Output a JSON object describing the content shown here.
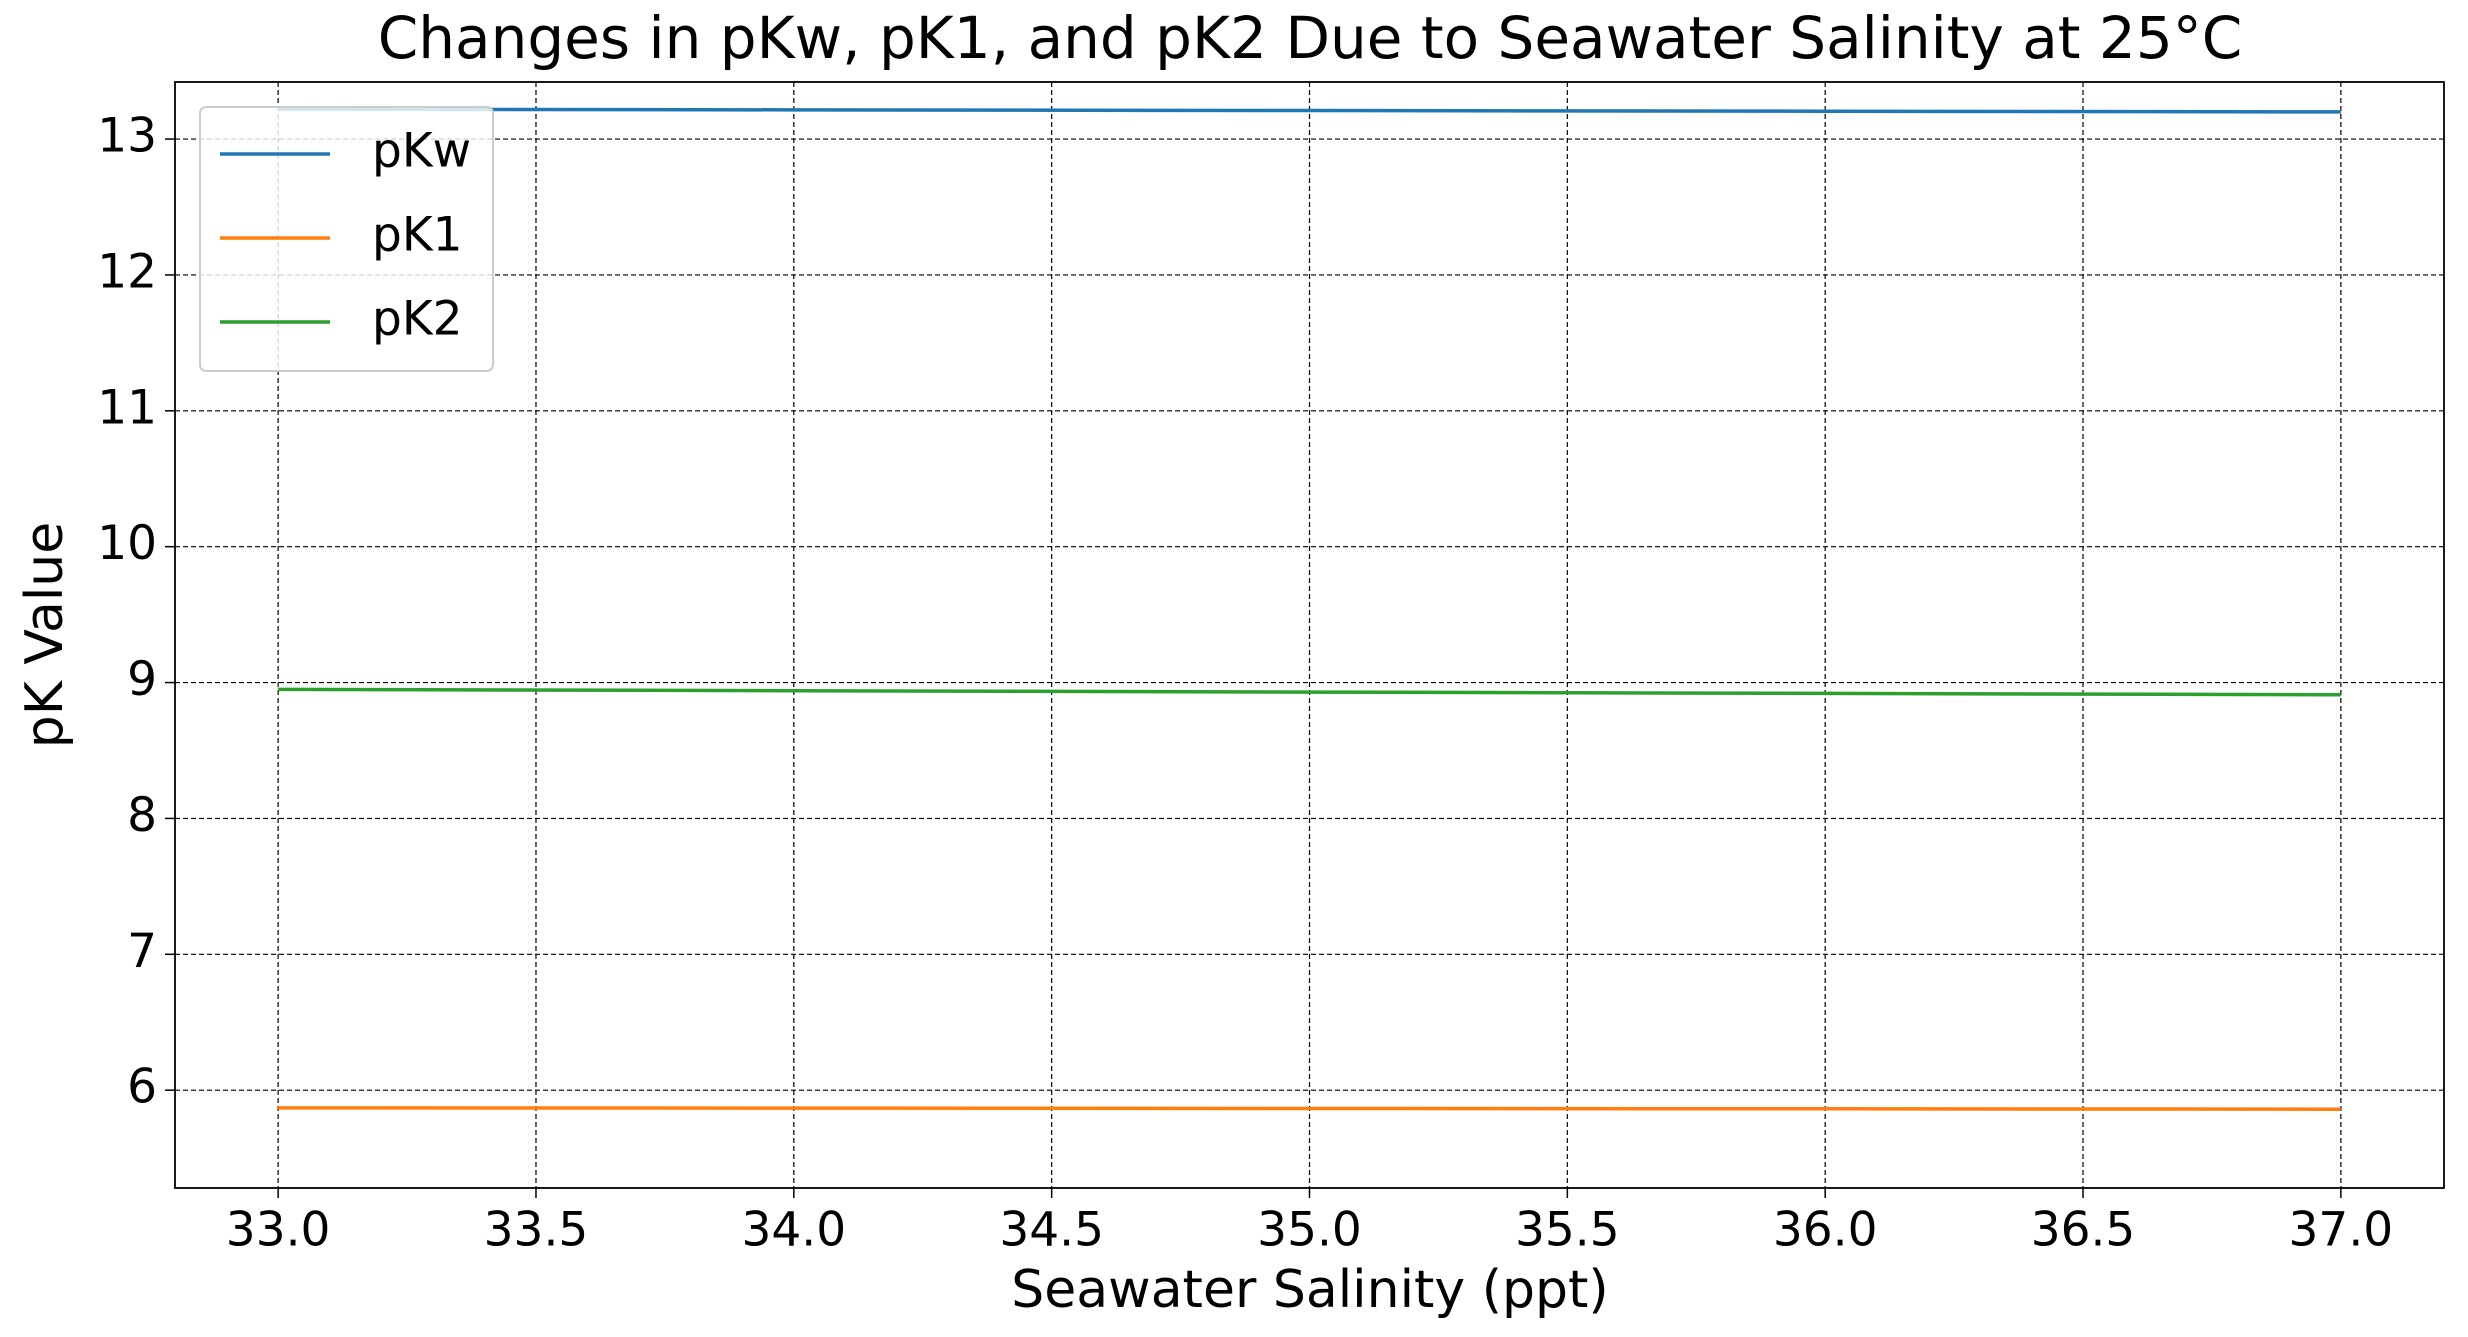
{
  "chart_data": {
    "type": "line",
    "title": "Changes in pKw, pK1, and pK2 Due to Seawater Salinity at 25°C",
    "x_label": "Seawater Salinity (ppt)",
    "y_label": "pK Value",
    "x": [
      33.0,
      34.0,
      35.0,
      36.0,
      37.0
    ],
    "series": [
      {
        "name": "pKw",
        "color": "#1f77b4",
        "values": [
          13.22,
          13.215,
          13.21,
          13.205,
          13.2
        ]
      },
      {
        "name": "pK1",
        "color": "#ff7f0e",
        "values": [
          5.87,
          5.868,
          5.865,
          5.863,
          5.86
        ]
      },
      {
        "name": "pK2",
        "color": "#2ca02c",
        "values": [
          8.95,
          8.94,
          8.93,
          8.92,
          8.91
        ]
      }
    ],
    "xlim": [
      32.8,
      37.2
    ],
    "xticks": [
      {
        "value": 33,
        "label": "33.0"
      },
      {
        "value": 33.5,
        "label": "33.5"
      },
      {
        "value": 34,
        "label": "34.0"
      },
      {
        "value": 34.5,
        "label": "34.5"
      },
      {
        "value": 35,
        "label": "35.0"
      },
      {
        "value": 35.5,
        "label": "35.5"
      },
      {
        "value": 36,
        "label": "36.0"
      },
      {
        "value": 36.5,
        "label": "36.5"
      },
      {
        "value": 37,
        "label": "37.0"
      }
    ],
    "ylim": [
      5.28,
      13.42
    ],
    "yticks": [
      6,
      7,
      8,
      9,
      10,
      11,
      12,
      13
    ],
    "grid": true,
    "legend": "upper left"
  }
}
